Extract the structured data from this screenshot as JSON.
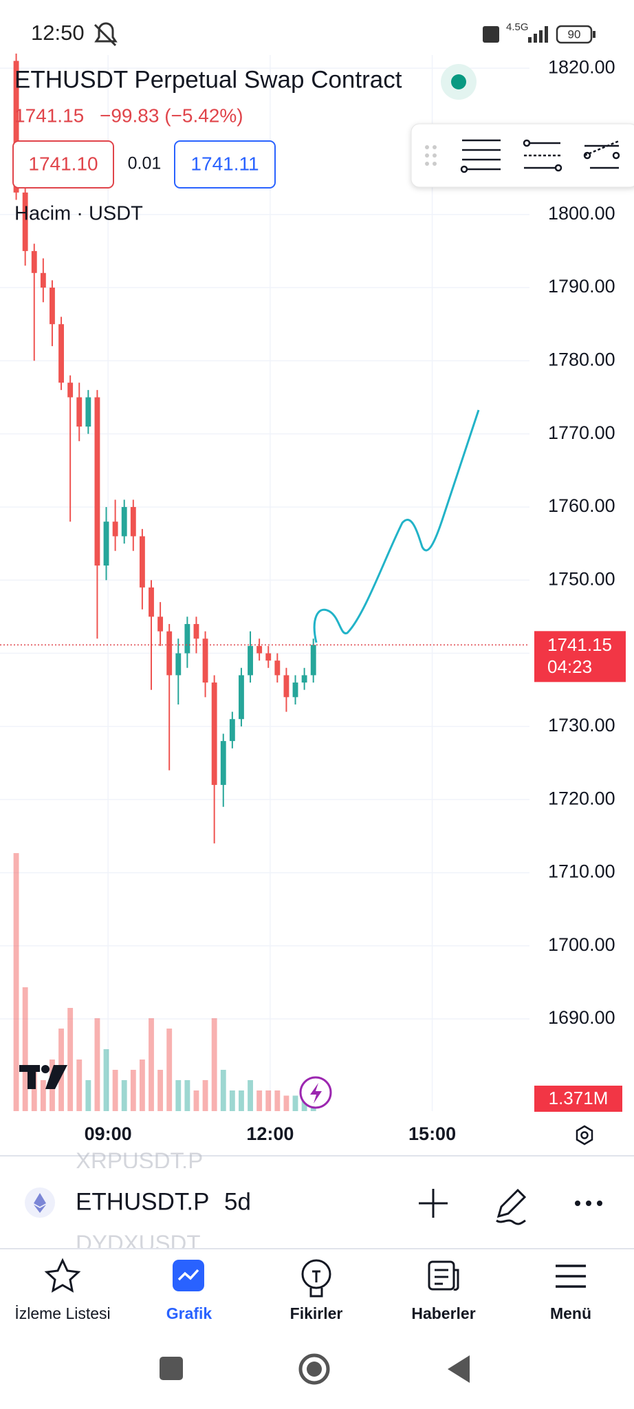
{
  "status_bar": {
    "time": "12:50",
    "network": "4.5G",
    "battery": "90"
  },
  "header": {
    "title": "ETHUSDT Perpetual Swap Contract",
    "change": "−99.83 (−5.42%)",
    "bid": "1741.10",
    "spread": "0.01",
    "ask": "1741.11",
    "volume_title": "Hacim · USDT"
  },
  "chart_data": {
    "type": "candlestick",
    "last_price": 1741.15,
    "countdown": "04:23",
    "x": [
      438,
      448,
      458,
      468,
      478,
      488,
      498,
      508,
      518,
      528,
      538,
      548,
      558,
      568,
      578,
      588,
      598,
      608,
      618,
      628,
      638,
      648,
      658,
      668,
      678,
      688,
      698,
      708,
      718,
      728,
      738,
      748,
      758,
      768
    ],
    "open": [
      1821,
      1803,
      1795,
      1792,
      1790,
      1785,
      1777,
      1775,
      1771,
      1775,
      1752,
      1758,
      1756,
      1760,
      1756,
      1749,
      1745,
      1743,
      1737,
      1740,
      1744,
      1742,
      1736,
      1722,
      1728,
      1731,
      1737,
      1741,
      1740,
      1739,
      1737,
      1734,
      1736,
      1737
    ],
    "high": [
      1822,
      1806,
      1796,
      1794,
      1791,
      1786,
      1778,
      1777,
      1776,
      1776,
      1760,
      1761,
      1761,
      1761,
      1757,
      1750,
      1747,
      1744,
      1742,
      1745,
      1745,
      1743,
      1737,
      1729,
      1732,
      1738,
      1743,
      1742,
      1741,
      1740,
      1738,
      1737,
      1738,
      1742
    ],
    "low": [
      1802,
      1793,
      1780,
      1788,
      1782,
      1776,
      1758,
      1769,
      1770,
      1742,
      1750,
      1754,
      1755,
      1754,
      1746,
      1735,
      1741,
      1724,
      1733,
      1738,
      1740,
      1734,
      1714,
      1719,
      1727,
      1730,
      1736,
      1739,
      1738,
      1736,
      1732,
      1733,
      1735,
      1736
    ],
    "close": [
      1803,
      1795,
      1792,
      1790,
      1785,
      1777,
      1775,
      1771,
      1775,
      1752,
      1758,
      1756,
      1760,
      1756,
      1749,
      1745,
      1743,
      1737,
      1740,
      1744,
      1742,
      1736,
      1722,
      1728,
      1731,
      1737,
      1741,
      1740,
      1739,
      1737,
      1734,
      1736,
      1737,
      1741.15
    ],
    "volume": [
      25000000,
      12000000,
      4000000,
      3000000,
      5000000,
      8000000,
      10000000,
      5000000,
      3000000,
      9000000,
      6000000,
      4000000,
      3000000,
      4000000,
      5000000,
      9000000,
      4000000,
      8000000,
      3000000,
      3000000,
      2000000,
      3000000,
      9000000,
      4000000,
      2000000,
      2000000,
      3000000,
      2000000,
      2000000,
      2000000,
      1500000,
      1500000,
      1200000,
      1371000
    ],
    "volume_labels": [
      null,
      null,
      null,
      null,
      null,
      null,
      null,
      null,
      null,
      null,
      null,
      null,
      null,
      null,
      null,
      null,
      null,
      null,
      null,
      null,
      null,
      null,
      null,
      null,
      null,
      null,
      null,
      null,
      null,
      null,
      null,
      null,
      null,
      "1.371M"
    ],
    "up_color": "#26a69a",
    "down_color": "#ef5350",
    "xlim": [
      420,
      1008
    ],
    "xticks": [
      {
        "value": 540,
        "label": "09:00"
      },
      {
        "value": 720,
        "label": "12:00"
      },
      {
        "value": 900,
        "label": "15:00"
      }
    ],
    "ylim": [
      1677.4,
      1821.8
    ],
    "yticks": [
      {
        "value": 1690,
        "label": "1690.00"
      },
      {
        "value": 1700,
        "label": "1700.00"
      },
      {
        "value": 1710,
        "label": "1710.00"
      },
      {
        "value": 1720,
        "label": "1720.00"
      },
      {
        "value": 1730,
        "label": "1730.00"
      },
      {
        "value": 1740,
        "label": "1740.00"
      },
      {
        "value": 1750,
        "label": "1750.00"
      },
      {
        "value": 1760,
        "label": "1760.00"
      },
      {
        "value": 1770,
        "label": "1770.00"
      },
      {
        "value": 1780,
        "label": "1780.00"
      },
      {
        "value": 1790,
        "label": "1790.00"
      },
      {
        "value": 1800,
        "label": "1800.00"
      },
      {
        "value": 1820,
        "label": "1820.00"
      }
    ],
    "vlim": [
      0,
      26000000
    ],
    "grid": true
  },
  "symbol_bar": {
    "prev": "XRPUSDT.P",
    "symbol": "ETHUSDT.P",
    "interval": "5d",
    "next": "DYDXUSDT"
  },
  "nav": [
    "İzleme Listesi",
    "Grafik",
    "Fikirler",
    "Haberler",
    "Menü"
  ]
}
